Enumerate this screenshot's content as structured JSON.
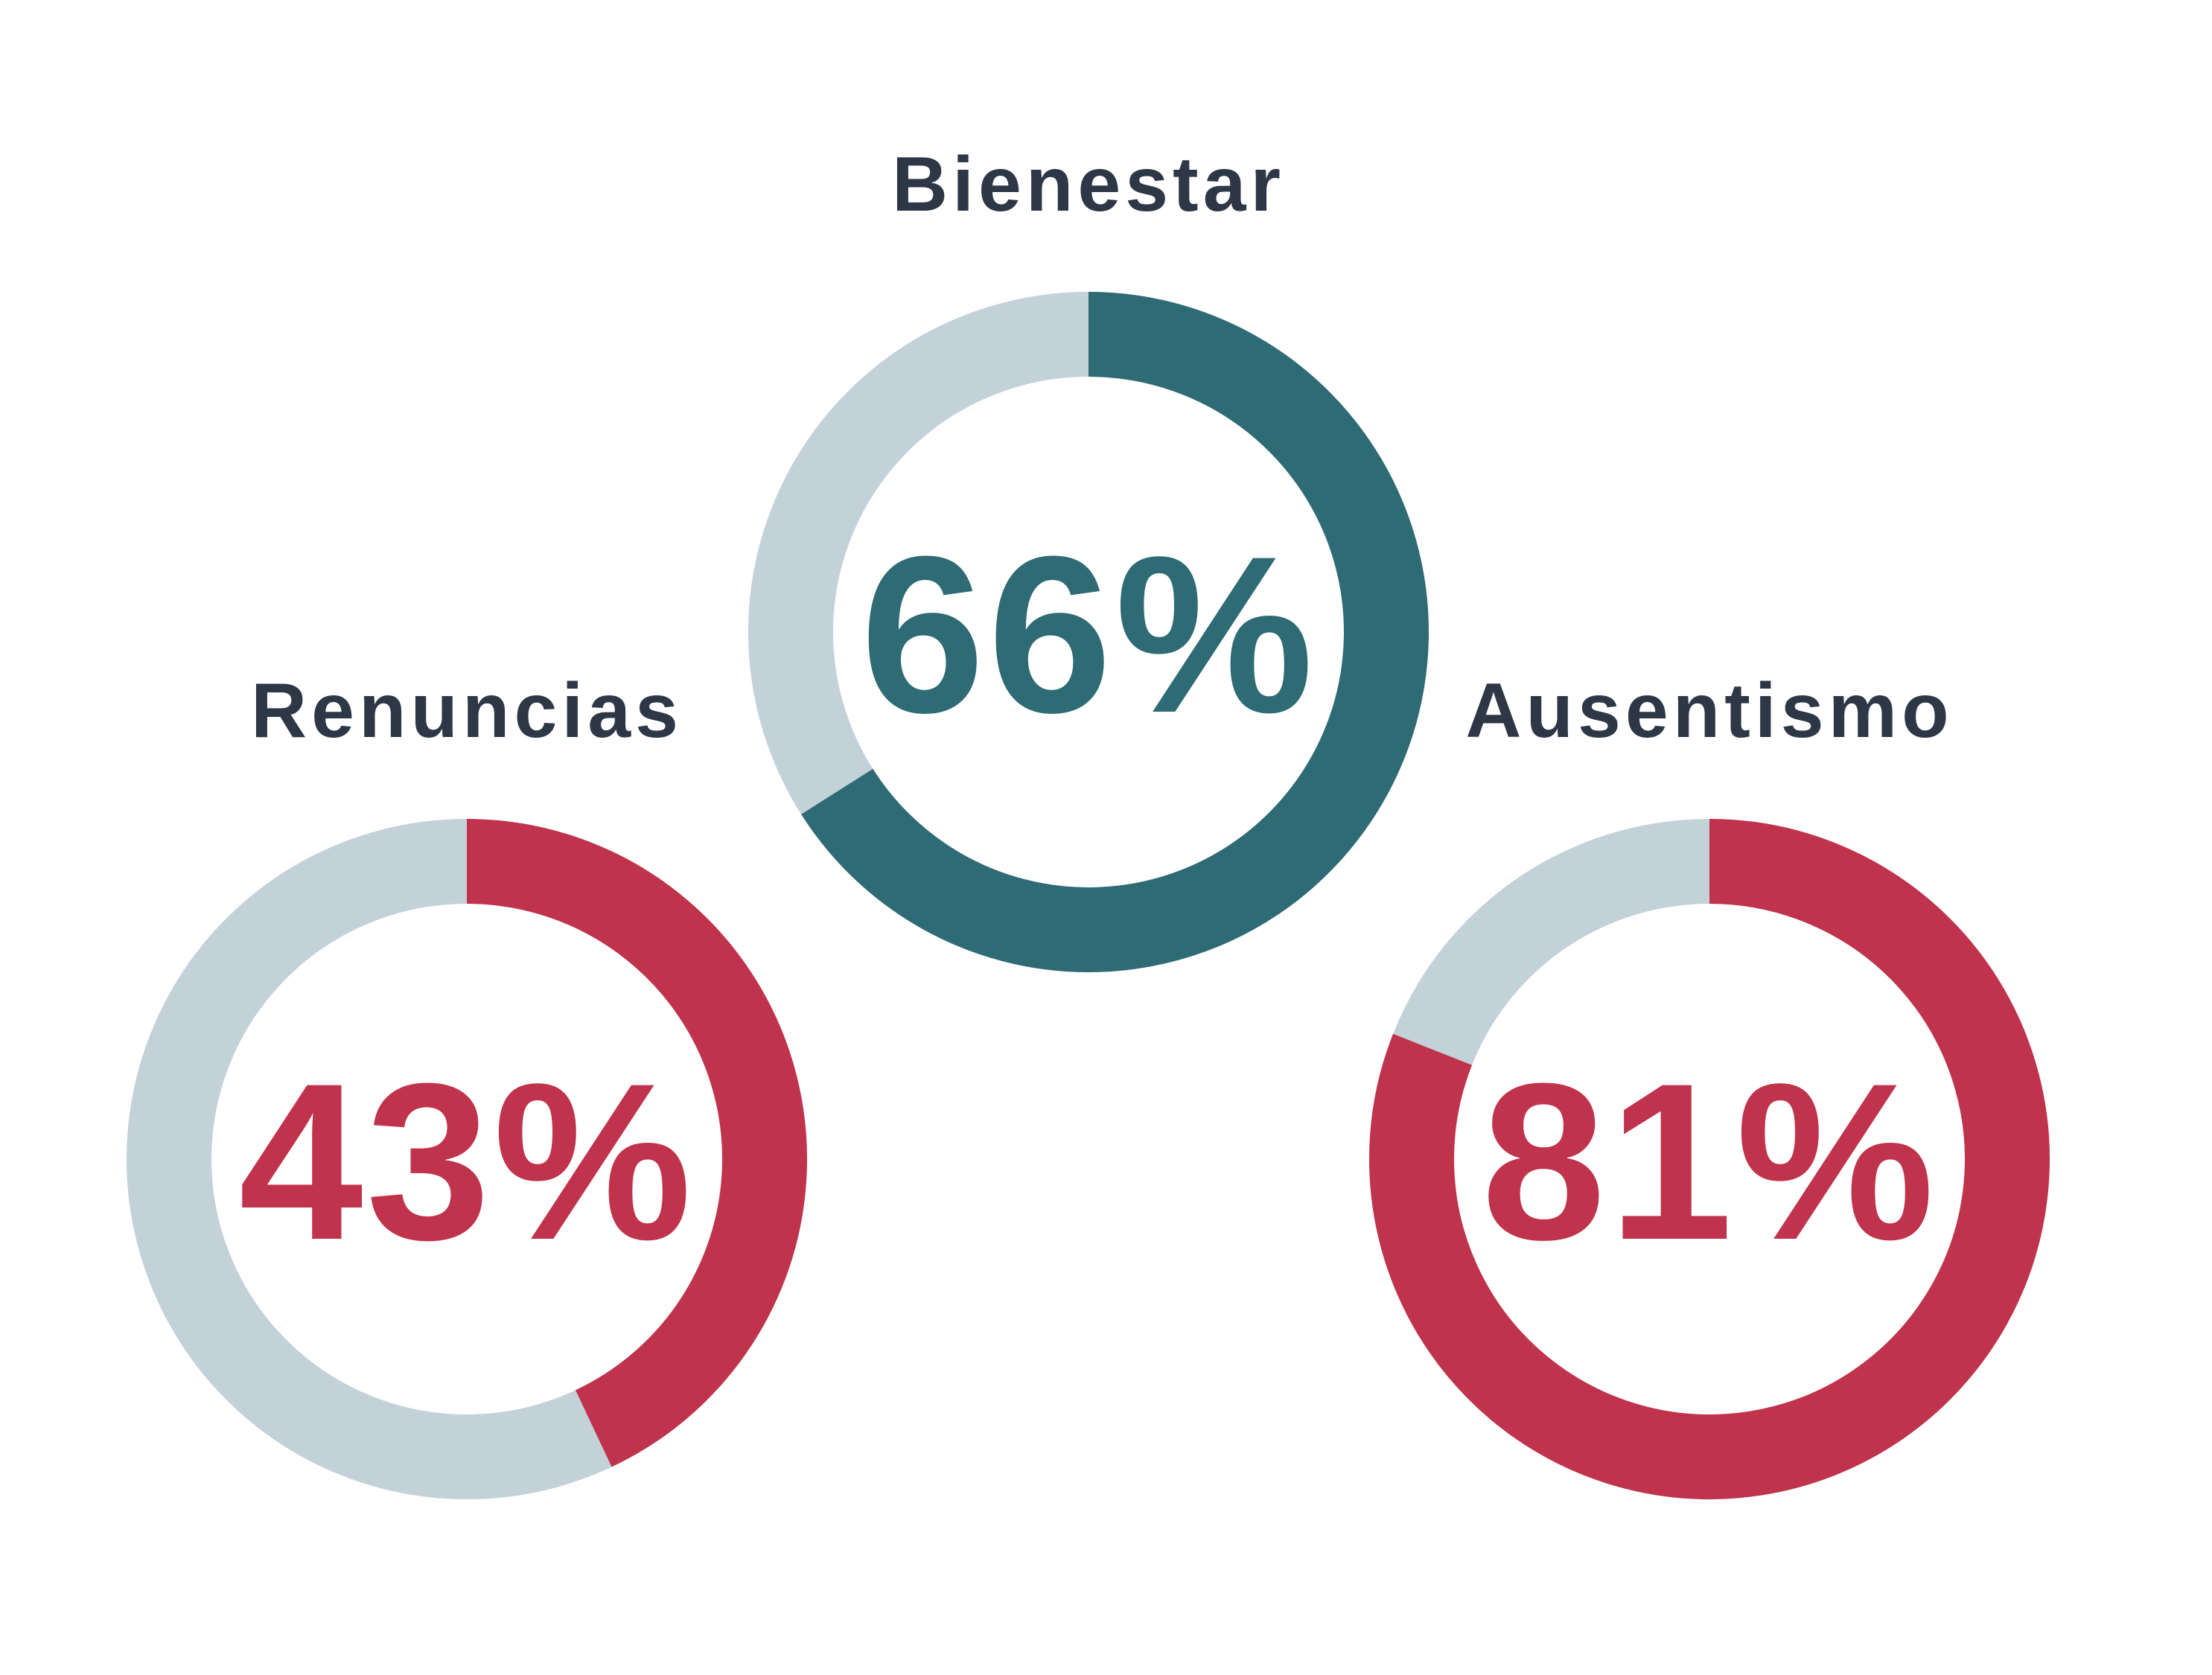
{
  "chart_data": [
    {
      "type": "pie",
      "title": "Bienestar",
      "value_label": "66%",
      "values": [
        66,
        34
      ],
      "categories": [
        "",
        ""
      ],
      "colors": {
        "filled": "#2E6B75",
        "track": "#C3D1D9",
        "label": "#2E6B75"
      }
    },
    {
      "type": "pie",
      "title": "Renuncias",
      "value_label": "43%",
      "values": [
        43,
        57
      ],
      "categories": [
        "",
        ""
      ],
      "colors": {
        "filled": "#C0334C",
        "track": "#C3D1D9",
        "label": "#C0334C"
      }
    },
    {
      "type": "pie",
      "title": "Ausentismo",
      "value_label": "81%",
      "values": [
        81,
        19
      ],
      "categories": [
        "",
        ""
      ],
      "colors": {
        "filled": "#C0334C",
        "track": "#C3D1D9",
        "label": "#C0334C"
      }
    }
  ],
  "colors": {
    "title_text": "#2D3746",
    "background": "#FFFFFF"
  }
}
